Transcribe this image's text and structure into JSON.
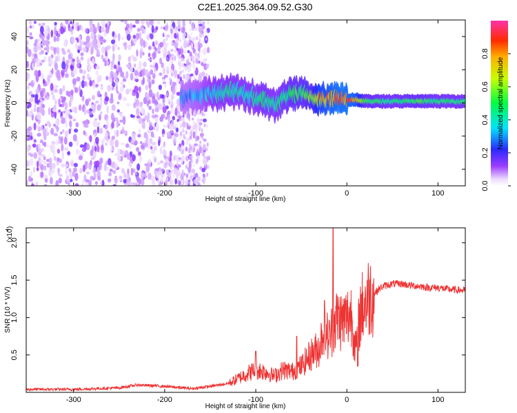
{
  "title": "C2E1.2025.364.09.52.G30",
  "chart_data": [
    {
      "type": "heatmap",
      "xlabel": "Height of straight line (km)",
      "ylabel": "Frequency (Hz)",
      "xlim": [
        -352,
        130
      ],
      "ylim": [
        -50,
        50
      ],
      "x_ticks": [
        -300,
        -200,
        -100,
        0,
        100
      ],
      "x_tick_labels": [
        "-300",
        "-200",
        "-100",
        "0",
        "100"
      ],
      "y_ticks": [
        -40,
        -20,
        0,
        20,
        40
      ],
      "y_tick_labels": [
        "-40",
        "-20",
        "0",
        "20",
        "40"
      ],
      "colorbar": {
        "label": "Normalized spectral amplitude",
        "range": [
          0,
          1
        ],
        "ticks": [
          0.0,
          0.2,
          0.4,
          0.6,
          0.8
        ],
        "tick_labels": [
          "0.0",
          "0.2",
          "0.4",
          "0.6",
          "0.8"
        ]
      },
      "ridge": {
        "x": [
          -180,
          -160,
          -140,
          -120,
          -100,
          -90,
          -80,
          -70,
          -60,
          -50,
          -40,
          -30,
          -20,
          -10,
          0,
          10,
          20,
          50,
          80,
          100,
          130
        ],
        "freq": [
          3,
          5,
          6,
          7,
          3,
          2,
          -1,
          2,
          6,
          5,
          4,
          2,
          2,
          4,
          2,
          2,
          1,
          1,
          1,
          1,
          1
        ],
        "amplitude": [
          0.3,
          0.35,
          0.45,
          0.45,
          0.45,
          0.5,
          0.45,
          0.5,
          0.55,
          0.55,
          0.6,
          0.8,
          0.85,
          0.9,
          0.9,
          0.85,
          0.55,
          0.5,
          0.55,
          0.5,
          0.5
        ]
      },
      "grid": false
    },
    {
      "type": "line",
      "xlabel": "Height of straight line (km)",
      "ylabel": "SNR (10 * V/V)",
      "y_multiplier": "(x10",
      "y_multiplier_exp": "4",
      "y_multiplier_close": ")",
      "xlim": [
        -352,
        130
      ],
      "ylim": [
        0,
        2.2
      ],
      "x_ticks": [
        -300,
        -200,
        -100,
        0,
        100
      ],
      "x_tick_labels": [
        "-300",
        "-200",
        "-100",
        "0",
        "100"
      ],
      "y_ticks": [
        0.5,
        1.0,
        1.5,
        2.0
      ],
      "y_tick_labels": [
        "0.5",
        "1.0",
        "1.5",
        "2.0"
      ],
      "color": "#ee3333",
      "x": [
        -352,
        -300,
        -250,
        -230,
        -200,
        -170,
        -150,
        -130,
        -120,
        -110,
        -100,
        -90,
        -80,
        -70,
        -60,
        -50,
        -40,
        -30,
        -25,
        -20,
        -15,
        -10,
        -5,
        0,
        5,
        10,
        15,
        20,
        25,
        30,
        35,
        40,
        50,
        60,
        70,
        80,
        90,
        100,
        110,
        120,
        130
      ],
      "y": [
        0.04,
        0.04,
        0.06,
        0.1,
        0.08,
        0.05,
        0.08,
        0.12,
        0.18,
        0.25,
        0.3,
        0.28,
        0.22,
        0.3,
        0.28,
        0.35,
        0.5,
        0.6,
        0.9,
        0.7,
        0.9,
        1.0,
        0.95,
        1.0,
        1.05,
        0.55,
        1.1,
        1.2,
        1.3,
        1.32,
        1.38,
        1.42,
        1.45,
        1.45,
        1.43,
        1.42,
        1.4,
        1.4,
        1.38,
        1.37,
        1.36
      ],
      "spikes": [
        {
          "x": -15,
          "y": 2.2
        },
        {
          "x": -55,
          "y": 0.75
        },
        {
          "x": -100,
          "y": 0.55
        },
        {
          "x": 12,
          "y": 0.35
        }
      ],
      "grid": false
    }
  ]
}
